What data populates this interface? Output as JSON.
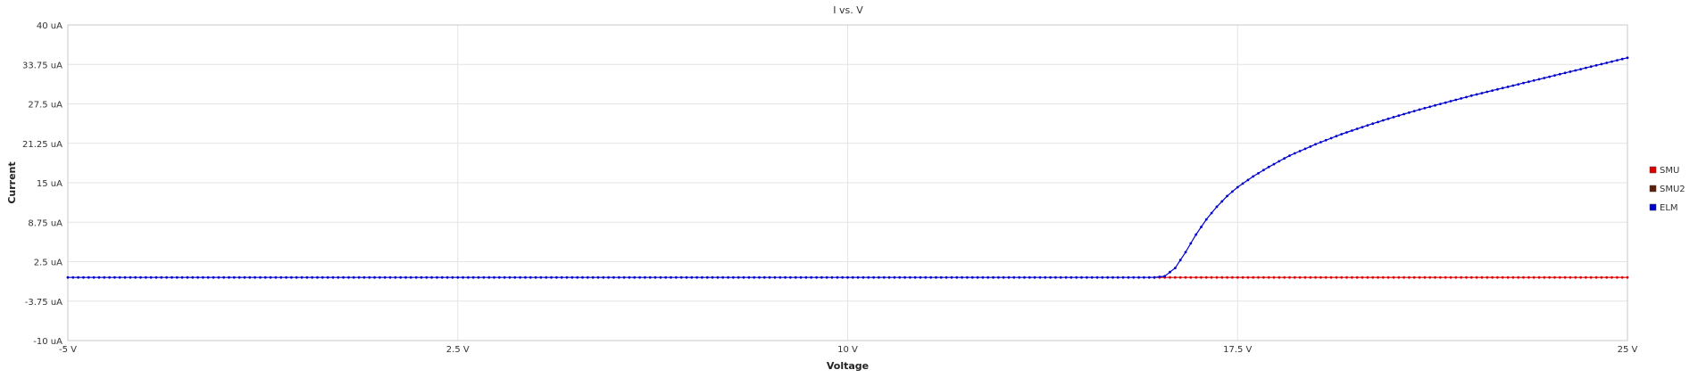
{
  "chart_data": {
    "type": "line",
    "title": "I vs. V",
    "xlabel": "Voltage",
    "ylabel": "Current",
    "xlim": [
      -5,
      25
    ],
    "ylim": [
      -10,
      40
    ],
    "x_unit": "V",
    "y_unit": "uA",
    "x_ticks": [
      -5,
      2.5,
      10,
      17.5,
      25
    ],
    "x_tick_labels": [
      "-5 V",
      "2.5 V",
      "10 V",
      "17.5 V",
      "25 V"
    ],
    "y_ticks": [
      40,
      33.75,
      27.5,
      21.25,
      15,
      8.75,
      2.5,
      -3.75,
      -10
    ],
    "y_tick_labels": [
      "40 uA",
      "33.75 uA",
      "27.5 uA",
      "21.25 uA",
      "15 uA",
      "8.75 uA",
      "2.5 uA",
      "-3.75 uA",
      "-10 uA"
    ],
    "grid": true,
    "legend_position": "right",
    "series": [
      {
        "name": "SMU",
        "color": "#dd0000",
        "x": [
          15.9,
          17.5,
          19,
          21,
          23,
          25
        ],
        "y": [
          0,
          0,
          0,
          0,
          0,
          0
        ]
      },
      {
        "name": "SMU2",
        "color": "#5a1f0a",
        "x": [],
        "y": []
      },
      {
        "name": "ELM",
        "color": "#0000cc",
        "x": [
          -5,
          0,
          5,
          10,
          15,
          15.9,
          16.1,
          16.3,
          16.5,
          16.7,
          16.9,
          17.1,
          17.3,
          17.5,
          17.8,
          18.1,
          18.5,
          19,
          19.5,
          20,
          20.5,
          21,
          21.5,
          22,
          22.5,
          23,
          23.5,
          24,
          24.5,
          25
        ],
        "y": [
          0,
          0,
          0,
          0,
          0,
          0,
          0.2,
          1.5,
          4.0,
          6.8,
          9.2,
          11.2,
          12.9,
          14.3,
          16.0,
          17.5,
          19.3,
          21.1,
          22.7,
          24.1,
          25.4,
          26.6,
          27.7,
          28.8,
          29.8,
          30.8,
          31.8,
          32.8,
          33.8,
          34.8
        ]
      }
    ]
  }
}
